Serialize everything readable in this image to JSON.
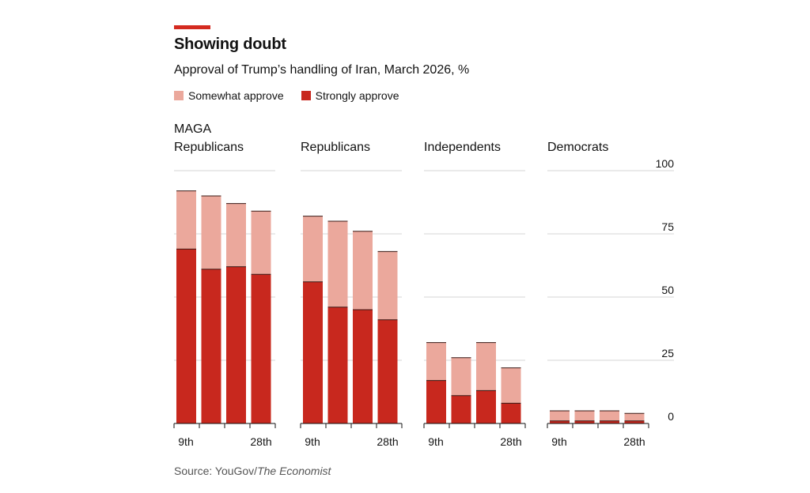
{
  "header": {
    "title": "Showing doubt",
    "subtitle": "Approval of Trump’s handling of Iran, March 2026, %"
  },
  "legend": [
    {
      "label": "Somewhat approve",
      "color": "#eba89c"
    },
    {
      "label": "Strongly approve",
      "color": "#c8281e"
    }
  ],
  "source": {
    "prefix": "Source: YouGov/",
    "publication": "The Economist"
  },
  "chart_data": {
    "type": "bar",
    "stacked": true,
    "ylim": [
      0,
      100
    ],
    "yticks": [
      0,
      25,
      50,
      75,
      100
    ],
    "x_tick_labels": [
      "9th",
      "28th"
    ],
    "colors": {
      "strongly": "#c8281e",
      "somewhat": "#eba89c"
    },
    "panels": [
      {
        "name": "MAGA\nRepublicans",
        "strongly": [
          69,
          61,
          62,
          59
        ],
        "somewhat": [
          23,
          29,
          25,
          25
        ]
      },
      {
        "name": "Republicans",
        "strongly": [
          56,
          46,
          45,
          41
        ],
        "somewhat": [
          26,
          34,
          31,
          27
        ]
      },
      {
        "name": "Independents",
        "strongly": [
          17,
          11,
          13,
          8
        ],
        "somewhat": [
          15,
          15,
          19,
          14
        ]
      },
      {
        "name": "Democrats",
        "strongly": [
          1,
          1,
          1,
          1
        ],
        "somewhat": [
          4,
          4,
          4,
          3
        ]
      }
    ]
  }
}
